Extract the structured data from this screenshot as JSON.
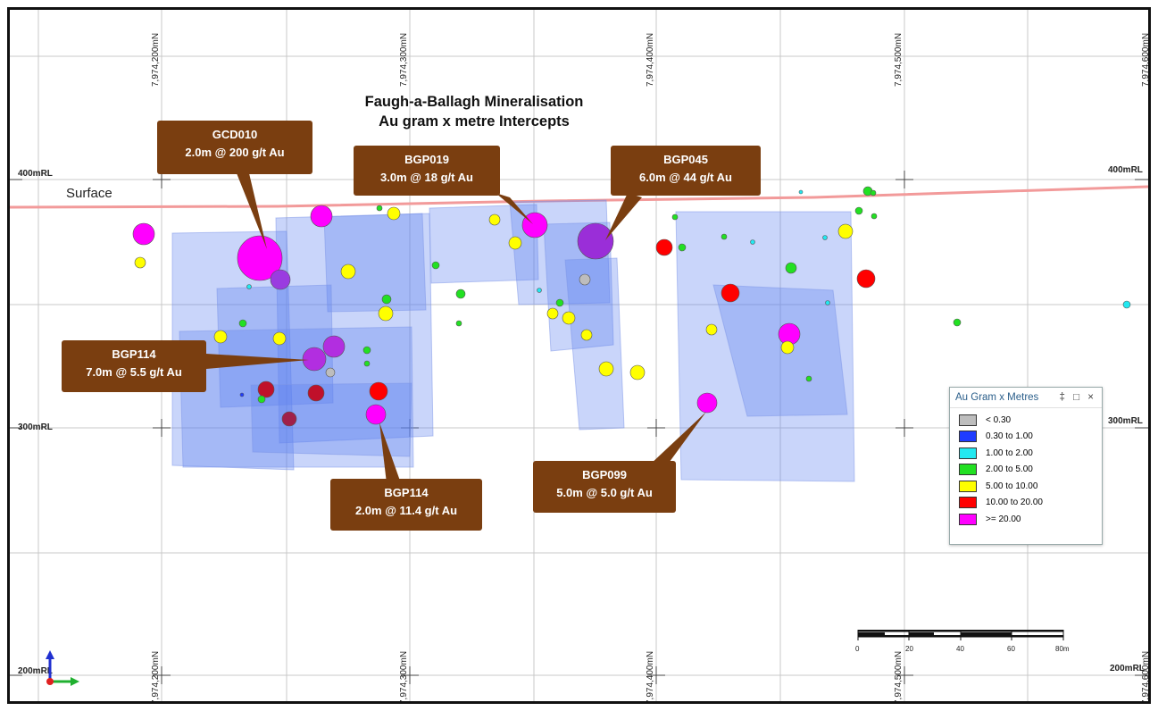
{
  "title": {
    "line1": "Faugh-a-Ballagh Mineralisation",
    "line2": "Au gram x metre Intercepts"
  },
  "northing_labels": [
    "7,974,200mN",
    "7,974,300mN",
    "7,974,400mN",
    "7,974,500mN",
    "7,974,600mN"
  ],
  "rl_labels": [
    "400mRL",
    "300mRL",
    "200mRL"
  ],
  "surface_label": "Surface",
  "callouts": [
    {
      "hole": "GCD010",
      "intercept": "2.0m @ 200 g/t Au"
    },
    {
      "hole": "BGP019",
      "intercept": "3.0m @ 18 g/t Au"
    },
    {
      "hole": "BGP045",
      "intercept": "6.0m @ 44 g/t Au"
    },
    {
      "hole": "BGP114",
      "intercept": "7.0m @ 5.5 g/t Au"
    },
    {
      "hole": "BGP114",
      "intercept": "2.0m @ 11.4 g/t Au"
    },
    {
      "hole": "BGP099",
      "intercept": "5.0m @ 5.0 g/t Au"
    }
  ],
  "legend": {
    "title": "Au Gram x Metres",
    "controls": "‡ □ ×",
    "items": [
      {
        "label": "< 0.30",
        "color": "#bdbdbd"
      },
      {
        "label": "0.30 to 1.00",
        "color": "#1f3cff"
      },
      {
        "label": "1.00 to 2.00",
        "color": "#22e8f0"
      },
      {
        "label": "2.00 to 5.00",
        "color": "#22e022"
      },
      {
        "label": "5.00 to 10.00",
        "color": "#ffff00"
      },
      {
        "label": "10.00 to 20.00",
        "color": "#ff0000"
      },
      {
        "label": ">= 20.00",
        "color": "#ff00ff"
      }
    ]
  },
  "scale_bar": {
    "labels": [
      "0",
      "20",
      "40",
      "60",
      "80m"
    ]
  },
  "colors": {
    "callout": "#7a3e10",
    "surface_line": "#f29a9a",
    "grid": "#c8c8c8",
    "shape_fill": "#5b7ff0"
  }
}
